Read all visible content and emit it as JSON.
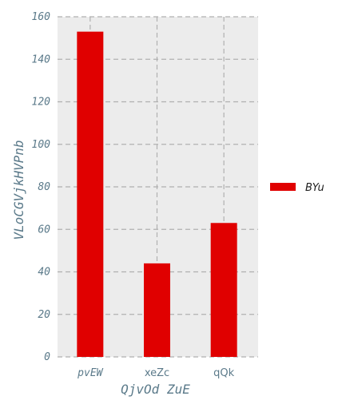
{
  "chart_data": {
    "type": "bar",
    "categories": [
      "pvEW",
      "xeZc",
      "qQk"
    ],
    "series": [
      {
        "name": "BYu",
        "values": [
          153,
          44,
          63
        ],
        "color": "#e00000"
      }
    ],
    "xlabel": "QjvOd ZuE",
    "ylabel": "VLoCGVjkHVPnb",
    "ylim": [
      0,
      160
    ],
    "yticks": [
      0,
      20,
      40,
      60,
      80,
      100,
      120,
      140,
      160
    ],
    "grid": true,
    "legend_position": "right",
    "background": "#ececec"
  }
}
